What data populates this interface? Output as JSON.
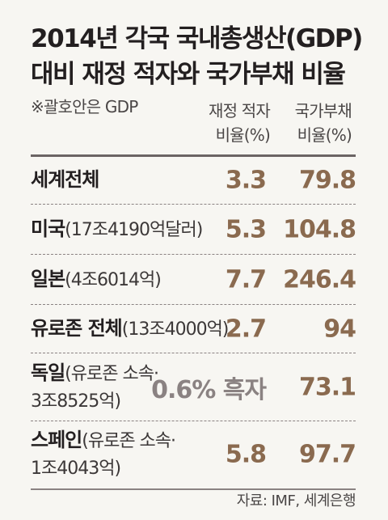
{
  "header": {
    "title_line1": "2014년 각국 국내총생산(GDP)",
    "title_line2": "대비 재정 적자와 국가부채 비율",
    "note": "※괄호안은 GDP",
    "col1_line1": "재정 적자",
    "col1_line2": "비율(%)",
    "col2_line1": "국가부채",
    "col2_line2": "비율(%)"
  },
  "rows": [
    {
      "name": "세계전체",
      "detail": "",
      "detail2": "",
      "deficit": "3.3",
      "debt": "79.8"
    },
    {
      "name": "미국",
      "detail": "(17조4190억달러)",
      "detail2": "",
      "deficit": "5.3",
      "debt": "104.8"
    },
    {
      "name": "일본",
      "detail": "(4조6014억)",
      "detail2": "",
      "deficit": "7.7",
      "debt": "246.4"
    },
    {
      "name": "유로존 전체",
      "detail": "(13조4000억)",
      "detail2": "",
      "deficit": "2.7",
      "debt": "94"
    },
    {
      "name": "독일",
      "detail": "(유로존 소속·",
      "detail2": "3조8525억)",
      "deficit": "0.6% 흑자",
      "debt": "73.1"
    },
    {
      "name": "스페인",
      "detail": "(유로존 소속·",
      "detail2": "1조4043억)",
      "deficit": "5.8",
      "debt": "97.7"
    }
  ],
  "source": "자료: IMF, 세계은행",
  "chart_data": {
    "type": "table",
    "title": "2014년 각국 국내총생산(GDP) 대비 재정 적자와 국가부채 비율",
    "note": "※괄호안은 GDP",
    "columns": [
      "재정 적자 비율(%)",
      "국가부채 비율(%)"
    ],
    "categories": [
      "세계전체",
      "미국",
      "일본",
      "유로존 전체",
      "독일",
      "스페인"
    ],
    "series": [
      {
        "name": "재정 적자 비율(%)",
        "values": [
          3.3,
          5.3,
          7.7,
          2.7,
          -0.6,
          5.8
        ]
      },
      {
        "name": "국가부채 비율(%)",
        "values": [
          79.8,
          104.8,
          246.4,
          94,
          73.1,
          97.7
        ]
      }
    ],
    "annotations": [
      "독일: 0.6% 흑자"
    ]
  },
  "colors": {
    "value": "#8a6a4f",
    "surplus": "#8a8282",
    "background": "#f7f6f2"
  }
}
